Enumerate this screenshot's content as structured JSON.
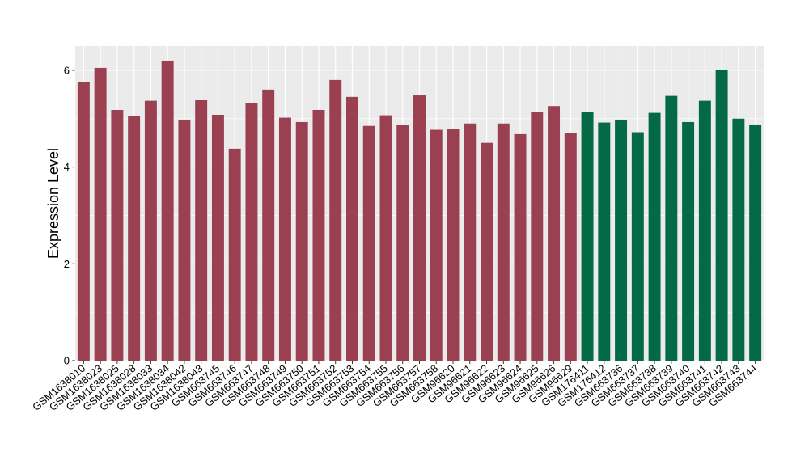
{
  "chart_data": {
    "type": "bar",
    "title": "",
    "xlabel": "",
    "ylabel": "Expression Level",
    "ylim": [
      0,
      6.5
    ],
    "yticks": [
      0,
      2,
      4,
      6
    ],
    "grid": true,
    "legend": "none",
    "colors": {
      "group1": "#9A4050",
      "group2": "#046A46",
      "panel": "#EBEBEB",
      "gridline": "#FFFFFF"
    },
    "categories": [
      "GSM1638010",
      "GSM1638023",
      "GSM1638025",
      "GSM1638028",
      "GSM1638033",
      "GSM1638034",
      "GSM1638042",
      "GSM1638043",
      "GSM663745",
      "GSM663746",
      "GSM663747",
      "GSM663748",
      "GSM663749",
      "GSM663750",
      "GSM663751",
      "GSM663752",
      "GSM663753",
      "GSM663754",
      "GSM663755",
      "GSM663756",
      "GSM663757",
      "GSM663758",
      "GSM96620",
      "GSM96621",
      "GSM96622",
      "GSM96623",
      "GSM96624",
      "GSM96625",
      "GSM96626",
      "GSM96629",
      "GSM176411",
      "GSM176412",
      "GSM663736",
      "GSM663737",
      "GSM663738",
      "GSM663739",
      "GSM663740",
      "GSM663741",
      "GSM663742",
      "GSM663743",
      "GSM663744"
    ],
    "values": [
      5.75,
      6.05,
      5.18,
      5.05,
      5.37,
      6.2,
      4.98,
      5.38,
      5.08,
      4.38,
      5.33,
      5.6,
      5.02,
      4.93,
      5.18,
      5.8,
      5.45,
      4.85,
      5.07,
      4.87,
      5.48,
      4.77,
      4.78,
      4.9,
      4.5,
      4.9,
      4.68,
      5.13,
      5.26,
      4.7,
      5.13,
      4.92,
      4.98,
      4.72,
      5.12,
      5.47,
      4.93,
      5.37,
      6.0,
      5.0,
      4.88
    ],
    "groups": [
      1,
      1,
      1,
      1,
      1,
      1,
      1,
      1,
      1,
      1,
      1,
      1,
      1,
      1,
      1,
      1,
      1,
      1,
      1,
      1,
      1,
      1,
      1,
      1,
      1,
      1,
      1,
      1,
      1,
      1,
      2,
      2,
      2,
      2,
      2,
      2,
      2,
      2,
      2,
      2,
      2
    ]
  }
}
